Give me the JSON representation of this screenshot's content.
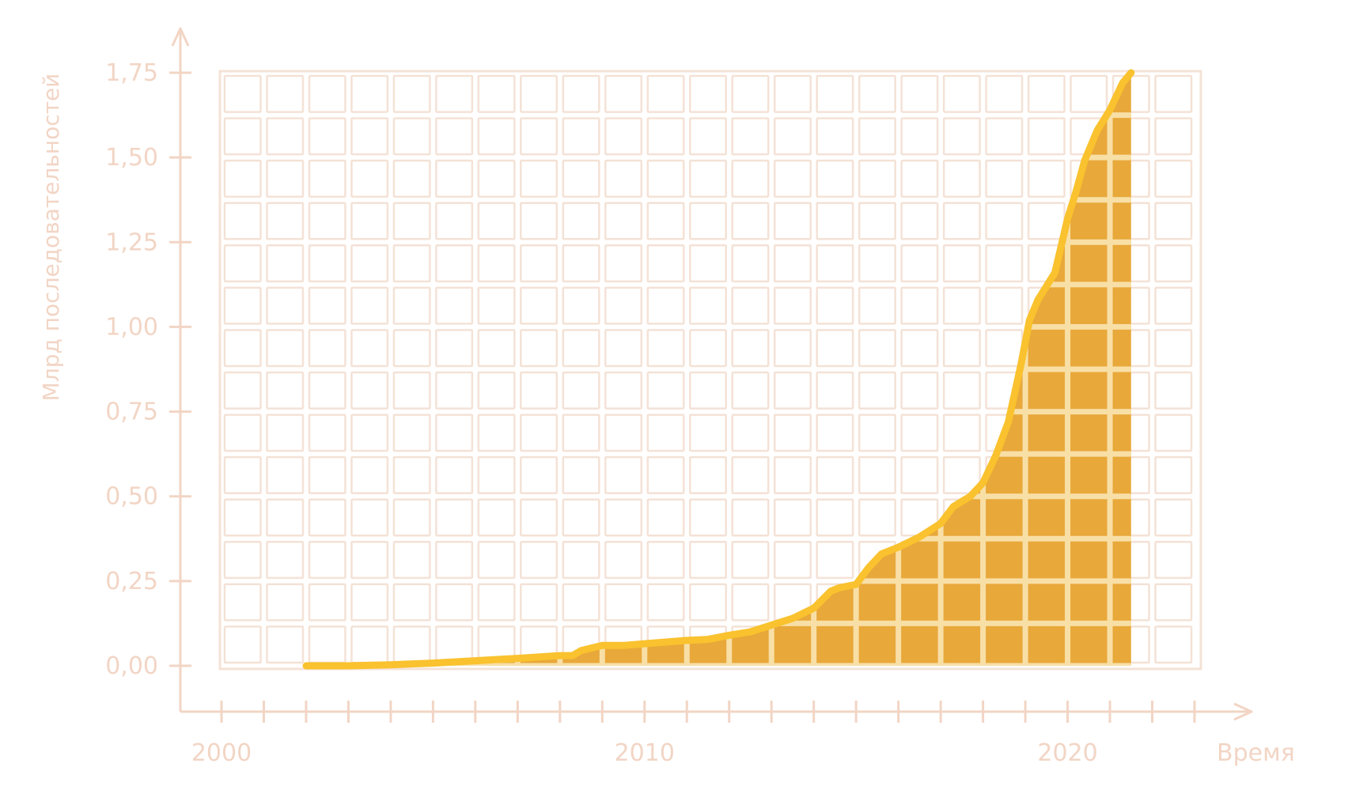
{
  "chart_data": {
    "type": "area",
    "xlabel": "Время",
    "ylabel": "Млрд последовательностей",
    "xlim": [
      2000,
      2023
    ],
    "ylim": [
      0,
      1.75
    ],
    "x_ticks": [
      2000,
      2001,
      2002,
      2003,
      2004,
      2005,
      2006,
      2007,
      2008,
      2009,
      2010,
      2011,
      2012,
      2013,
      2014,
      2015,
      2016,
      2017,
      2018,
      2019,
      2020,
      2021,
      2022,
      2023
    ],
    "x_tick_labels": [
      {
        "value": 2000,
        "label": "2000"
      },
      {
        "value": 2010,
        "label": "2010"
      },
      {
        "value": 2020,
        "label": "2020"
      }
    ],
    "y_ticks": [
      {
        "value": 0,
        "label": "0,00"
      },
      {
        "value": 0.25,
        "label": "0,25"
      },
      {
        "value": 0.5,
        "label": "0,50"
      },
      {
        "value": 0.75,
        "label": "0,75"
      },
      {
        "value": 1.0,
        "label": "1,00"
      },
      {
        "value": 1.25,
        "label": "1,25"
      },
      {
        "value": 1.5,
        "label": "1,50"
      },
      {
        "value": 1.75,
        "label": "1,75"
      }
    ],
    "grid": true,
    "colors": {
      "line": "#F9C22E",
      "fill": "#E8A83A",
      "grid": "#F4E2D6",
      "axis": "#F2D5C5",
      "text": "#F2D5C5"
    },
    "x": [
      2002.0,
      2003.0,
      2004.0,
      2005.0,
      2006.0,
      2007.0,
      2008.0,
      2008.3,
      2008.5,
      2009.0,
      2009.5,
      2010.0,
      2010.5,
      2011.0,
      2011.5,
      2012.0,
      2012.5,
      2013.0,
      2013.5,
      2014.0,
      2014.4,
      2014.6,
      2015.0,
      2015.3,
      2015.6,
      2016.0,
      2016.5,
      2017.0,
      2017.3,
      2017.7,
      2018.0,
      2018.3,
      2018.6,
      2018.9,
      2019.1,
      2019.3,
      2019.7,
      2020.0,
      2020.2,
      2020.4,
      2020.7,
      2021.0,
      2021.3,
      2021.5
    ],
    "values": [
      0.0,
      0.0,
      0.003,
      0.008,
      0.015,
      0.022,
      0.03,
      0.03,
      0.045,
      0.06,
      0.06,
      0.065,
      0.07,
      0.075,
      0.078,
      0.09,
      0.1,
      0.12,
      0.14,
      0.17,
      0.22,
      0.23,
      0.24,
      0.29,
      0.33,
      0.35,
      0.38,
      0.42,
      0.47,
      0.5,
      0.54,
      0.62,
      0.72,
      0.89,
      1.02,
      1.08,
      1.16,
      1.32,
      1.4,
      1.49,
      1.58,
      1.64,
      1.72,
      1.75
    ]
  }
}
